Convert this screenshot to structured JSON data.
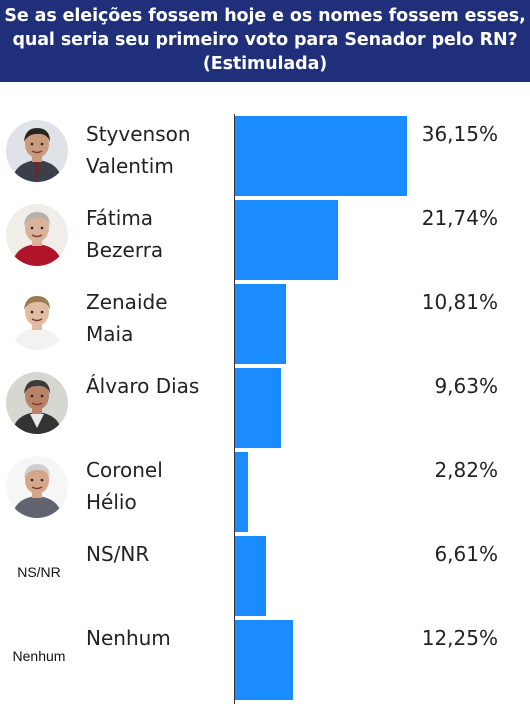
{
  "header": {
    "line1": "Se as eleições fossem hoje e os nomes fossem esses,",
    "line2": "qual seria seu primeiro voto para Senador pelo RN?",
    "line3": "(Estimulada)"
  },
  "chart_data": {
    "type": "bar",
    "orientation": "horizontal",
    "title": "Se as eleições fossem hoje e os nomes fossem esses, qual seria seu primeiro voto para Senador pelo RN? (Estimulada)",
    "categories": [
      {
        "name_line1": "Styvenson",
        "name_line2": "Valentim",
        "value": 36.15,
        "label": "36,15%",
        "icon": "candidate-photo-styvenson"
      },
      {
        "name_line1": "Fátima",
        "name_line2": "Bezerra",
        "value": 21.74,
        "label": "21,74%",
        "icon": "candidate-photo-fatima"
      },
      {
        "name_line1": "Zenaide",
        "name_line2": "Maia",
        "value": 10.81,
        "label": "10,81%",
        "icon": "candidate-photo-zenaide"
      },
      {
        "name_line1": "Álvaro Dias",
        "name_line2": "",
        "value": 9.63,
        "label": "9,63%",
        "icon": "candidate-photo-alvaro"
      },
      {
        "name_line1": "Coronel",
        "name_line2": "Hélio",
        "value": 2.82,
        "label": "2,82%",
        "icon": "candidate-photo-helio"
      },
      {
        "name_line1": "NS/NR",
        "name_line2": "",
        "value": 6.61,
        "label": "6,61%",
        "icon_text": "NS/NR"
      },
      {
        "name_line1": "Nenhum",
        "name_line2": "",
        "value": 12.25,
        "label": "12,25%",
        "icon_text": "Nenhum"
      }
    ],
    "bar_color": "#1a8cff",
    "header_color": "#1f2f7a",
    "xlim": [
      0,
      36.15
    ]
  }
}
